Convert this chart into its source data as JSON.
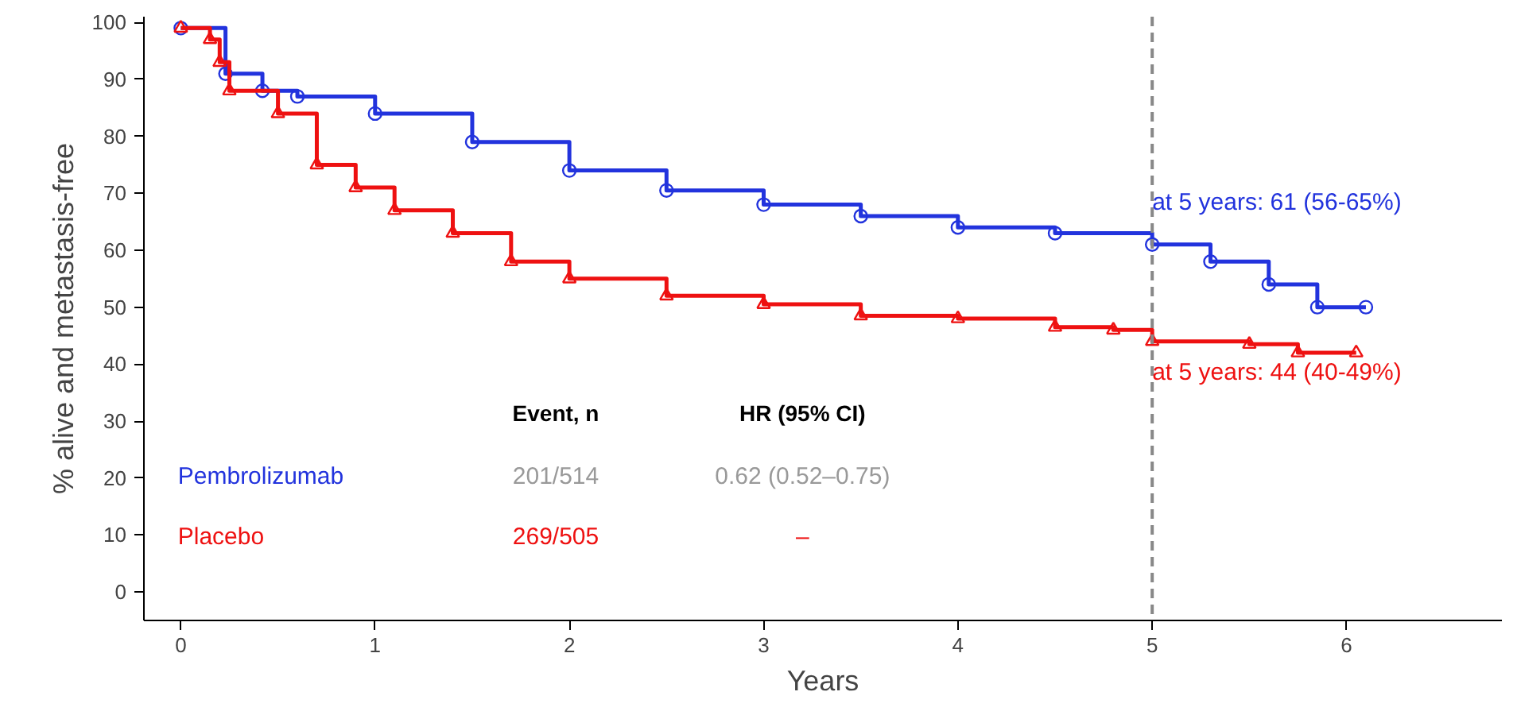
{
  "chart_data": {
    "type": "step",
    "xlabel": "Years",
    "ylabel": "% alive and metastasis-free",
    "xlim": [
      -0.19,
      6.8
    ],
    "ylim": [
      -5,
      101
    ],
    "xticks": [
      0,
      1,
      2,
      3,
      4,
      5,
      6
    ],
    "yticks": [
      0,
      10,
      20,
      30,
      40,
      50,
      60,
      70,
      80,
      90,
      100
    ],
    "grid": false,
    "series": [
      {
        "name": "Pembrolizumab",
        "color": "#2233dd",
        "marker": "circle",
        "x": [
          0,
          0.23,
          0.42,
          0.6,
          1.0,
          1.5,
          2.0,
          2.5,
          3.0,
          3.5,
          4.0,
          4.5,
          5.0,
          5.3,
          5.6,
          5.85,
          6.1
        ],
        "values": [
          99,
          91,
          88,
          87,
          84,
          79,
          74,
          70.5,
          68,
          66,
          64,
          63,
          61,
          58,
          54,
          50,
          50
        ]
      },
      {
        "name": "Placebo",
        "color": "#ee1111",
        "marker": "triangle",
        "x": [
          0,
          0.15,
          0.2,
          0.25,
          0.5,
          0.7,
          0.9,
          1.1,
          1.4,
          1.7,
          2.0,
          2.5,
          3.0,
          3.5,
          4.0,
          4.5,
          4.8,
          5.0,
          5.5,
          5.75,
          6.05
        ],
        "values": [
          99,
          97,
          93,
          88,
          84,
          75,
          71,
          67,
          63,
          58,
          55,
          52,
          50.5,
          48.5,
          48,
          46.5,
          46,
          44,
          43.5,
          42,
          42
        ]
      }
    ],
    "ref_lines": [
      {
        "axis": "x",
        "value": 5,
        "label": null,
        "color": "#888888",
        "line_style": "dashed"
      }
    ],
    "annotations": [
      {
        "text": "at 5 years: 61 (56-65%)",
        "x": 5,
        "y": 61
      },
      {
        "text": "at 5 years: 44 (40-49%)",
        "x": 5,
        "y": 44
      },
      "Event, n",
      "HR (95% CI)",
      "201/514",
      "0.62 (0.52–0.75)",
      "269/505",
      "–"
    ]
  }
}
